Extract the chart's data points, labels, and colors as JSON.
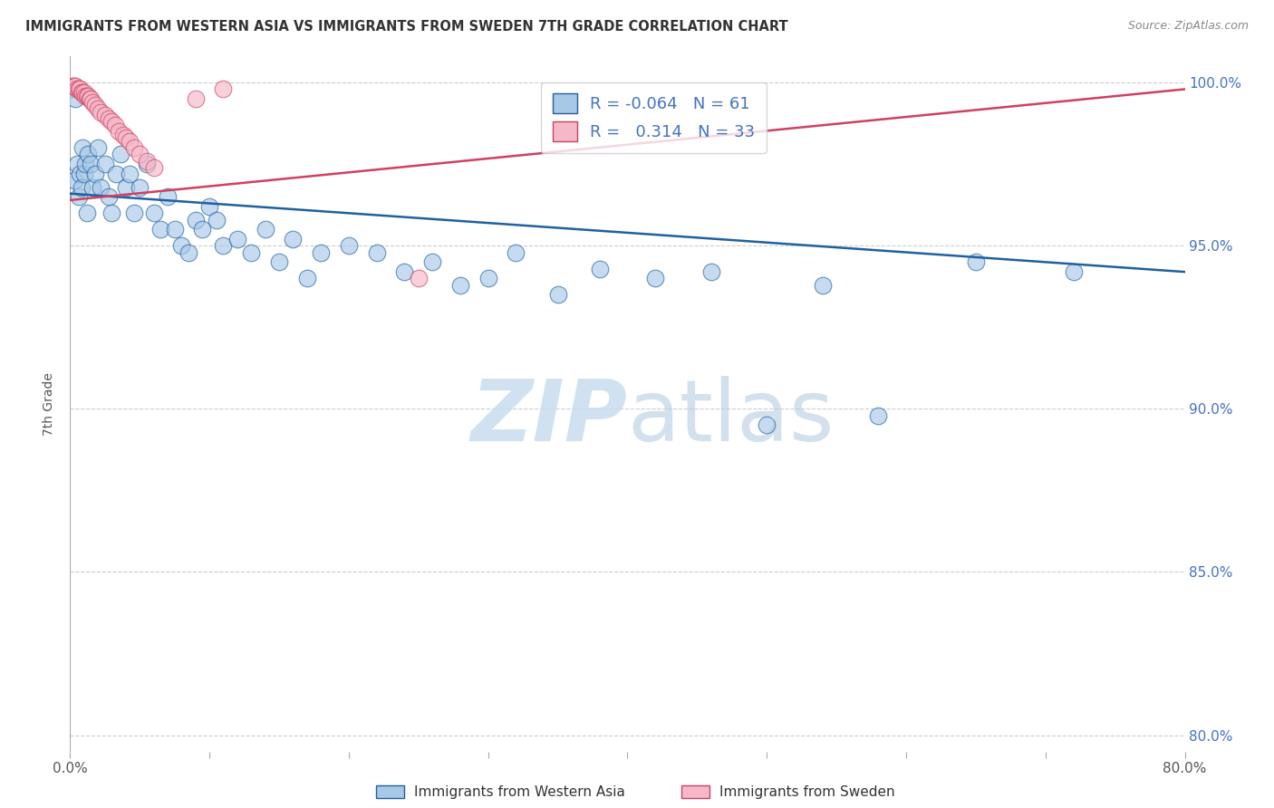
{
  "title": "IMMIGRANTS FROM WESTERN ASIA VS IMMIGRANTS FROM SWEDEN 7TH GRADE CORRELATION CHART",
  "source": "Source: ZipAtlas.com",
  "ylabel": "7th Grade",
  "legend_label_blue": "Immigrants from Western Asia",
  "legend_label_pink": "Immigrants from Sweden",
  "R_blue": -0.064,
  "N_blue": 61,
  "R_pink": 0.314,
  "N_pink": 33,
  "color_blue": "#a8c8e8",
  "color_pink": "#f4b8c8",
  "color_trendline_blue": "#2060a0",
  "color_trendline_pink": "#d04060",
  "xmin": 0.0,
  "xmax": 0.8,
  "ymin": 0.795,
  "ymax": 1.008,
  "yticks": [
    0.8,
    0.85,
    0.9,
    0.95,
    1.0
  ],
  "ytick_labels": [
    "80.0%",
    "85.0%",
    "90.0%",
    "95.0%",
    "100.0%"
  ],
  "xticks": [
    0.0,
    0.1,
    0.2,
    0.3,
    0.4,
    0.5,
    0.6,
    0.7,
    0.8
  ],
  "xtick_labels": [
    "0.0%",
    "",
    "",
    "",
    "",
    "",
    "",
    "",
    "80.0%"
  ],
  "watermark_zip": "ZIP",
  "watermark_atlas": "atlas",
  "blue_x": [
    0.002,
    0.003,
    0.004,
    0.005,
    0.006,
    0.007,
    0.008,
    0.009,
    0.01,
    0.011,
    0.012,
    0.013,
    0.015,
    0.016,
    0.018,
    0.02,
    0.022,
    0.025,
    0.028,
    0.03,
    0.033,
    0.036,
    0.04,
    0.043,
    0.046,
    0.05,
    0.055,
    0.06,
    0.065,
    0.07,
    0.075,
    0.08,
    0.085,
    0.09,
    0.095,
    0.1,
    0.105,
    0.11,
    0.12,
    0.13,
    0.14,
    0.15,
    0.16,
    0.17,
    0.18,
    0.2,
    0.22,
    0.24,
    0.26,
    0.28,
    0.3,
    0.32,
    0.35,
    0.38,
    0.42,
    0.46,
    0.5,
    0.54,
    0.58,
    0.65,
    0.72
  ],
  "blue_y": [
    0.998,
    0.97,
    0.995,
    0.975,
    0.965,
    0.972,
    0.968,
    0.98,
    0.972,
    0.975,
    0.96,
    0.978,
    0.975,
    0.968,
    0.972,
    0.98,
    0.968,
    0.975,
    0.965,
    0.96,
    0.972,
    0.978,
    0.968,
    0.972,
    0.96,
    0.968,
    0.975,
    0.96,
    0.955,
    0.965,
    0.955,
    0.95,
    0.948,
    0.958,
    0.955,
    0.962,
    0.958,
    0.95,
    0.952,
    0.948,
    0.955,
    0.945,
    0.952,
    0.94,
    0.948,
    0.95,
    0.948,
    0.942,
    0.945,
    0.938,
    0.94,
    0.948,
    0.935,
    0.943,
    0.94,
    0.942,
    0.895,
    0.938,
    0.898,
    0.945,
    0.942
  ],
  "pink_x": [
    0.002,
    0.003,
    0.004,
    0.005,
    0.006,
    0.007,
    0.008,
    0.009,
    0.01,
    0.011,
    0.012,
    0.013,
    0.014,
    0.015,
    0.016,
    0.018,
    0.02,
    0.022,
    0.025,
    0.028,
    0.03,
    0.032,
    0.035,
    0.038,
    0.04,
    0.043,
    0.046,
    0.05,
    0.055,
    0.06,
    0.09,
    0.11,
    0.25
  ],
  "pink_y": [
    0.999,
    0.999,
    0.999,
    0.998,
    0.998,
    0.998,
    0.997,
    0.997,
    0.997,
    0.996,
    0.996,
    0.996,
    0.995,
    0.995,
    0.994,
    0.993,
    0.992,
    0.991,
    0.99,
    0.989,
    0.988,
    0.987,
    0.985,
    0.984,
    0.983,
    0.982,
    0.98,
    0.978,
    0.976,
    0.974,
    0.995,
    0.998,
    0.94
  ],
  "trendline_blue_x0": 0.0,
  "trendline_blue_y0": 0.966,
  "trendline_blue_x1": 0.8,
  "trendline_blue_y1": 0.942,
  "trendline_pink_x0": 0.0,
  "trendline_pink_y0": 0.964,
  "trendline_pink_x1": 0.8,
  "trendline_pink_y1": 0.998
}
